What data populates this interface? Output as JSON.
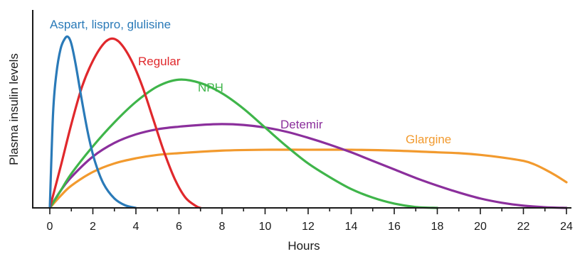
{
  "chart_data": {
    "type": "line",
    "xlabel": "Hours",
    "ylabel": "Plasma insulin levels",
    "xlim": [
      0,
      24
    ],
    "ylim": [
      0,
      1
    ],
    "x_major_ticks": [
      0,
      2,
      4,
      6,
      8,
      10,
      12,
      14,
      16,
      18,
      20,
      22,
      24
    ],
    "x_minor_step": 1,
    "y_tick_labels": false,
    "grid": false,
    "legend": "none (series labeled directly on curves)",
    "series": [
      {
        "name": "Aspart, lispro, glulisine",
        "color": "#2a7ab8",
        "x": [
          0,
          0.15,
          0.3,
          0.5,
          0.7,
          0.85,
          1.0,
          1.2,
          1.5,
          1.8,
          2.1,
          2.5,
          3.0,
          3.5,
          4.0
        ],
        "y": [
          0,
          0.55,
          0.78,
          0.93,
          0.99,
          1.0,
          0.96,
          0.84,
          0.62,
          0.42,
          0.27,
          0.14,
          0.055,
          0.015,
          0
        ]
      },
      {
        "name": "Regular",
        "color": "#e0282c",
        "x": [
          0,
          0.5,
          1.0,
          1.5,
          2.0,
          2.5,
          2.9,
          3.3,
          3.8,
          4.3,
          4.8,
          5.3,
          5.8,
          6.3,
          6.8,
          7.0
        ],
        "y": [
          0,
          0.24,
          0.49,
          0.71,
          0.86,
          0.96,
          0.99,
          0.96,
          0.86,
          0.71,
          0.52,
          0.33,
          0.17,
          0.06,
          0.01,
          0
        ]
      },
      {
        "name": "NPH",
        "color": "#3fb54a",
        "x": [
          0,
          0.5,
          1,
          2,
          3,
          4,
          5,
          6,
          7,
          8,
          9,
          10,
          11,
          12,
          13,
          14,
          15,
          16,
          17,
          18
        ],
        "y": [
          0,
          0.1,
          0.2,
          0.36,
          0.5,
          0.62,
          0.71,
          0.75,
          0.73,
          0.67,
          0.58,
          0.47,
          0.36,
          0.26,
          0.18,
          0.11,
          0.06,
          0.025,
          0.005,
          0
        ]
      },
      {
        "name": "Detemir",
        "color": "#8b2f9c",
        "x": [
          0,
          0.5,
          1,
          2,
          3,
          4,
          5,
          6,
          7,
          8,
          9,
          10,
          11,
          12,
          13,
          14,
          15,
          16,
          17,
          18,
          19,
          20,
          21,
          22,
          23,
          24
        ],
        "y": [
          0,
          0.1,
          0.18,
          0.3,
          0.38,
          0.43,
          0.46,
          0.475,
          0.485,
          0.49,
          0.485,
          0.47,
          0.445,
          0.41,
          0.37,
          0.325,
          0.275,
          0.225,
          0.175,
          0.13,
          0.09,
          0.055,
          0.03,
          0.013,
          0.004,
          0
        ]
      },
      {
        "name": "Glargine",
        "color": "#f29a2e",
        "x": [
          0,
          0.5,
          1,
          2,
          3,
          4,
          5,
          6,
          8,
          10,
          12,
          14,
          16,
          18,
          19,
          20,
          21,
          22,
          22.5,
          23,
          23.5,
          24
        ],
        "y": [
          0,
          0.07,
          0.13,
          0.21,
          0.26,
          0.29,
          0.31,
          0.32,
          0.335,
          0.34,
          0.34,
          0.34,
          0.335,
          0.325,
          0.32,
          0.31,
          0.295,
          0.275,
          0.255,
          0.225,
          0.19,
          0.15
        ]
      }
    ],
    "annotations": [
      {
        "text": "Aspart, lispro, glulisine",
        "color": "#2a7ab8"
      },
      {
        "text": "Regular",
        "color": "#e0282c"
      },
      {
        "text": "NPH",
        "color": "#3fb54a"
      },
      {
        "text": "Detemir",
        "color": "#8b2f9c"
      },
      {
        "text": "Glargine",
        "color": "#f29a2e"
      }
    ]
  }
}
